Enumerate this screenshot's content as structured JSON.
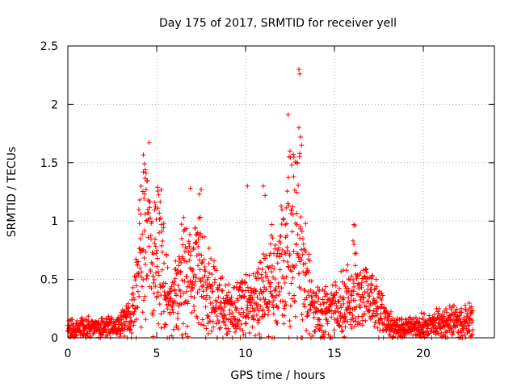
{
  "chart_data": {
    "type": "scatter",
    "title": "Day 175 of 2017, SRMTID for receiver yell",
    "xlabel": "GPS time / hours",
    "ylabel": "SRMTID / TECUs",
    "xlim": [
      0,
      24
    ],
    "ylim": [
      0,
      2.5
    ],
    "grid": true,
    "marker": "+",
    "color": "#ff0000",
    "x_ticks": [
      0,
      5,
      10,
      15,
      20
    ],
    "x_tick_labels": [
      "0",
      "5",
      "10",
      "15",
      "20"
    ],
    "y_ticks": [
      0,
      0.5,
      1,
      1.5,
      2,
      2.5
    ],
    "y_tick_labels": [
      "0",
      "0.5",
      "1",
      "1.5",
      "2",
      "2.5"
    ],
    "series": [
      {
        "name": "SRMTID",
        "profile_hours": [
          0,
          0.5,
          1,
          1.5,
          2,
          2.5,
          3,
          3.5,
          3.8,
          4.1,
          4.4,
          4.7,
          5.0,
          5.3,
          5.6,
          5.9,
          6.2,
          6.5,
          6.8,
          7.1,
          7.4,
          7.7,
          8.0,
          8.3,
          8.6,
          9.0,
          9.4,
          9.8,
          10.2,
          10.6,
          11.0,
          11.4,
          11.8,
          12.2,
          12.5,
          12.8,
          13.1,
          13.4,
          13.7,
          14.0,
          14.5,
          15.0,
          15.5,
          16.0,
          16.3,
          16.7,
          17.0,
          17.4,
          17.8,
          18.2,
          18.6,
          19.0,
          19.5,
          20.0,
          20.5,
          21.0,
          21.5,
          22.0,
          22.5,
          22.8
        ],
        "profile_values": [
          0.07,
          0.08,
          0.09,
          0.08,
          0.08,
          0.09,
          0.12,
          0.16,
          0.3,
          0.7,
          0.85,
          0.75,
          0.65,
          0.55,
          0.35,
          0.3,
          0.4,
          0.5,
          0.5,
          0.5,
          0.55,
          0.45,
          0.4,
          0.3,
          0.25,
          0.22,
          0.2,
          0.25,
          0.3,
          0.35,
          0.35,
          0.45,
          0.5,
          0.55,
          0.7,
          0.75,
          0.7,
          0.45,
          0.25,
          0.2,
          0.2,
          0.22,
          0.28,
          0.3,
          0.35,
          0.3,
          0.28,
          0.25,
          0.15,
          0.1,
          0.08,
          0.08,
          0.09,
          0.1,
          0.11,
          0.12,
          0.13,
          0.12,
          0.13,
          0.15
        ],
        "outliers": [
          {
            "x": 4.3,
            "y": 1.49
          },
          {
            "x": 4.35,
            "y": 1.44
          },
          {
            "x": 4.25,
            "y": 1.42
          },
          {
            "x": 4.4,
            "y": 1.27
          },
          {
            "x": 4.5,
            "y": 1.1
          },
          {
            "x": 5.05,
            "y": 1.29
          },
          {
            "x": 5.25,
            "y": 1.27
          },
          {
            "x": 5.4,
            "y": 0.98
          },
          {
            "x": 6.9,
            "y": 1.28
          },
          {
            "x": 7.4,
            "y": 1.23
          },
          {
            "x": 7.5,
            "y": 1.27
          },
          {
            "x": 10.1,
            "y": 1.3
          },
          {
            "x": 11.0,
            "y": 1.3
          },
          {
            "x": 11.1,
            "y": 1.22
          },
          {
            "x": 12.4,
            "y": 1.91
          },
          {
            "x": 12.5,
            "y": 1.6
          },
          {
            "x": 12.45,
            "y": 1.55
          },
          {
            "x": 12.6,
            "y": 1.48
          },
          {
            "x": 12.7,
            "y": 1.38
          },
          {
            "x": 13.0,
            "y": 2.3
          },
          {
            "x": 13.05,
            "y": 2.26
          },
          {
            "x": 13.0,
            "y": 1.8
          },
          {
            "x": 13.1,
            "y": 1.72
          },
          {
            "x": 13.15,
            "y": 1.65
          },
          {
            "x": 13.05,
            "y": 1.58
          },
          {
            "x": 12.9,
            "y": 1.5
          },
          {
            "x": 16.1,
            "y": 0.97
          },
          {
            "x": 16.15,
            "y": 0.96
          },
          {
            "x": 16.05,
            "y": 0.83
          },
          {
            "x": 16.1,
            "y": 0.8
          },
          {
            "x": 4.8,
            "y": 0.01
          },
          {
            "x": 11.3,
            "y": 0.01
          },
          {
            "x": 11.5,
            "y": 0.0
          },
          {
            "x": 22.0,
            "y": 0.0
          },
          {
            "x": 22.1,
            "y": 0.0
          },
          {
            "x": 22.2,
            "y": 0.0
          }
        ]
      }
    ]
  }
}
